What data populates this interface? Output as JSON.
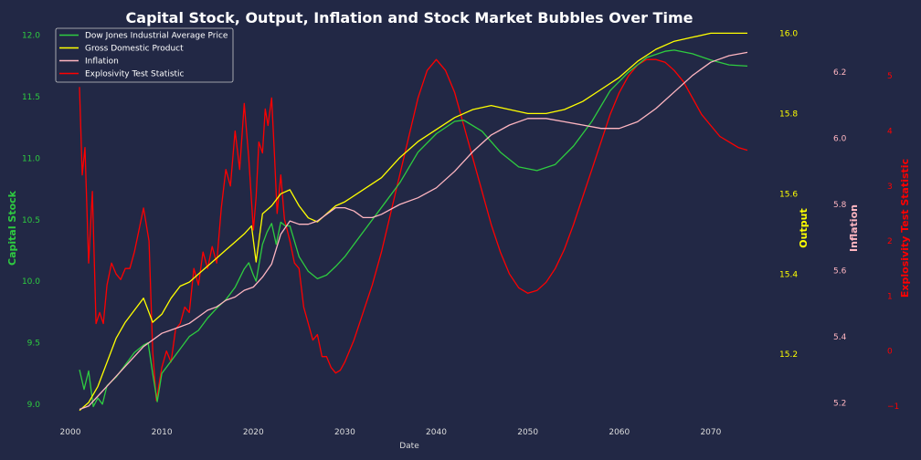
{
  "chart_data": {
    "type": "line",
    "title": "Capital Stock, Output, Inflation and Stock Market Bubbles Over Time",
    "xlabel": "Date",
    "xlim": [
      1998.5,
      2075.5
    ],
    "x_ticks": [
      "2000",
      "2010",
      "2020",
      "2030",
      "2040",
      "2050",
      "2060",
      "2070"
    ],
    "grid": false,
    "legend_position": "top-left",
    "axes": {
      "capital_stock": {
        "label": "Capital Stock",
        "color": "#2ecc40",
        "ylim": [
          8.85,
          12.05
        ],
        "ticks": [
          "9.0",
          "9.5",
          "10.0",
          "10.5",
          "11.0",
          "11.5",
          "12.0"
        ]
      },
      "output": {
        "label": "Output",
        "color": "#ffff00",
        "ylim": [
          15.03,
          16.01
        ],
        "ticks": [
          "15.2",
          "15.4",
          "15.6",
          "15.8",
          "16.0"
        ]
      },
      "inflation": {
        "label": "Inflation",
        "color": "#ffb6c1",
        "ylim": [
          5.14,
          6.33
        ],
        "ticks": [
          "5.2",
          "5.4",
          "5.6",
          "5.8",
          "6.0",
          "6.2"
        ]
      },
      "explosivity": {
        "label": "Explosivity Test Statistic",
        "color": "#ff0000",
        "ylim": [
          -1.3,
          5.85
        ],
        "ticks": [
          "−1",
          "0",
          "1",
          "2",
          "3",
          "4",
          "5"
        ]
      }
    },
    "series": [
      {
        "name": "Dow Jones Industrial Average Price",
        "axis": "capital_stock",
        "color": "#2ecc40",
        "x": [
          2001,
          2001.5,
          2002,
          2002.5,
          2003,
          2003.5,
          2004,
          2005,
          2006,
          2007,
          2008,
          2008.5,
          2009,
          2009.5,
          2010,
          2011,
          2012,
          2013,
          2014,
          2015,
          2016,
          2017,
          2018,
          2019,
          2019.5,
          2020,
          2020.3,
          2021,
          2021.5,
          2022,
          2022.5,
          2023,
          2023.5,
          2024,
          2025,
          2026,
          2027,
          2028,
          2029,
          2030,
          2032,
          2034,
          2036,
          2038,
          2040,
          2042,
          2043,
          2045,
          2047,
          2049,
          2051,
          2053,
          2055,
          2057,
          2059,
          2061,
          2063,
          2065,
          2066,
          2068,
          2070,
          2072,
          2074
        ],
        "values": [
          9.28,
          9.12,
          9.27,
          8.98,
          9.05,
          9.0,
          9.15,
          9.22,
          9.32,
          9.42,
          9.48,
          9.5,
          9.25,
          9.02,
          9.25,
          9.35,
          9.45,
          9.55,
          9.6,
          9.7,
          9.78,
          9.85,
          9.95,
          10.1,
          10.15,
          10.05,
          10.0,
          10.3,
          10.4,
          10.47,
          10.3,
          10.48,
          10.45,
          10.45,
          10.2,
          10.08,
          10.02,
          10.05,
          10.12,
          10.2,
          10.4,
          10.6,
          10.8,
          11.05,
          11.2,
          11.3,
          11.31,
          11.22,
          11.05,
          10.93,
          10.9,
          10.95,
          11.1,
          11.3,
          11.55,
          11.7,
          11.82,
          11.87,
          11.88,
          11.85,
          11.8,
          11.76,
          11.75
        ]
      },
      {
        "name": "Gross Domestic Product",
        "axis": "output",
        "color": "#ffff00",
        "x": [
          2001,
          2002,
          2003,
          2004,
          2005,
          2006,
          2007,
          2008,
          2009,
          2010,
          2011,
          2012,
          2013,
          2014,
          2015,
          2016,
          2017,
          2018,
          2019,
          2019.8,
          2020.3,
          2021,
          2022,
          2023,
          2024,
          2025,
          2026,
          2027,
          2028,
          2029,
          2030,
          2032,
          2034,
          2036,
          2038,
          2040,
          2042,
          2044,
          2046,
          2048,
          2050,
          2052,
          2054,
          2056,
          2058,
          2060,
          2062,
          2064,
          2066,
          2068,
          2070,
          2072,
          2074
        ],
        "values": [
          15.06,
          15.08,
          15.12,
          15.18,
          15.24,
          15.28,
          15.31,
          15.34,
          15.28,
          15.3,
          15.34,
          15.37,
          15.38,
          15.4,
          15.42,
          15.44,
          15.46,
          15.48,
          15.5,
          15.52,
          15.43,
          15.55,
          15.57,
          15.6,
          15.61,
          15.57,
          15.54,
          15.53,
          15.55,
          15.57,
          15.58,
          15.61,
          15.64,
          15.69,
          15.73,
          15.76,
          15.79,
          15.81,
          15.82,
          15.81,
          15.8,
          15.8,
          15.81,
          15.83,
          15.86,
          15.89,
          15.93,
          15.96,
          15.98,
          15.99,
          16.0,
          16.0,
          16.0
        ]
      },
      {
        "name": "Inflation",
        "axis": "inflation",
        "color": "#ffb6c1",
        "x": [
          2001,
          2002,
          2003,
          2004,
          2005,
          2006,
          2007,
          2008,
          2009,
          2010,
          2011,
          2012,
          2013,
          2014,
          2015,
          2016,
          2017,
          2018,
          2019,
          2020,
          2021,
          2022,
          2023,
          2024,
          2025,
          2026,
          2027,
          2028,
          2029,
          2030,
          2031,
          2032,
          2033,
          2034,
          2036,
          2038,
          2040,
          2042,
          2044,
          2046,
          2048,
          2050,
          2052,
          2054,
          2056,
          2058,
          2060,
          2062,
          2064,
          2066,
          2068,
          2070,
          2072,
          2074
        ],
        "values": [
          5.18,
          5.19,
          5.22,
          5.25,
          5.28,
          5.31,
          5.34,
          5.37,
          5.39,
          5.41,
          5.42,
          5.43,
          5.44,
          5.46,
          5.48,
          5.49,
          5.51,
          5.52,
          5.54,
          5.55,
          5.58,
          5.62,
          5.71,
          5.75,
          5.74,
          5.74,
          5.75,
          5.77,
          5.79,
          5.79,
          5.78,
          5.76,
          5.76,
          5.77,
          5.8,
          5.82,
          5.85,
          5.9,
          5.96,
          6.01,
          6.04,
          6.06,
          6.06,
          6.05,
          6.04,
          6.03,
          6.03,
          6.05,
          6.09,
          6.14,
          6.19,
          6.23,
          6.25,
          6.26
        ]
      },
      {
        "name": "Explosivity Test Statistic",
        "axis": "explosivity",
        "color": "#ff0000",
        "x": [
          2001,
          2001.3,
          2001.6,
          2002,
          2002.4,
          2002.8,
          2003.2,
          2003.6,
          2004,
          2004.5,
          2005,
          2005.5,
          2006,
          2006.5,
          2007,
          2007.5,
          2008,
          2008.3,
          2008.6,
          2009,
          2009.4,
          2009.6,
          2010,
          2010.5,
          2011,
          2011.5,
          2012,
          2012.5,
          2013,
          2013.5,
          2014,
          2014.5,
          2015,
          2015.5,
          2016,
          2016.5,
          2017,
          2017.5,
          2018,
          2018.5,
          2019,
          2019.5,
          2020,
          2020.3,
          2020.6,
          2021,
          2021.3,
          2021.6,
          2022,
          2022.3,
          2022.6,
          2023,
          2023.4,
          2024,
          2024.5,
          2025,
          2025.5,
          2026,
          2026.5,
          2027,
          2027.5,
          2028,
          2028.5,
          2029,
          2029.5,
          2030,
          2031,
          2032,
          2033,
          2034,
          2035,
          2036,
          2037,
          2038,
          2039,
          2040,
          2041,
          2042,
          2043,
          2044,
          2045,
          2046,
          2047,
          2048,
          2049,
          2050,
          2051,
          2052,
          2053,
          2054,
          2055,
          2056,
          2057,
          2058,
          2059,
          2060,
          2061,
          2062,
          2063,
          2064,
          2065,
          2066,
          2067,
          2068,
          2069,
          2070,
          2071,
          2072,
          2073,
          2074
        ],
        "values": [
          4.8,
          3.2,
          3.7,
          1.6,
          2.9,
          0.5,
          0.7,
          0.5,
          1.2,
          1.6,
          1.4,
          1.3,
          1.5,
          1.5,
          1.8,
          2.2,
          2.6,
          2.3,
          2.0,
          0.0,
          -0.9,
          -0.7,
          -0.3,
          0.0,
          -0.2,
          0.4,
          0.5,
          0.8,
          0.7,
          1.5,
          1.2,
          1.8,
          1.5,
          1.9,
          1.6,
          2.6,
          3.3,
          3.0,
          4.0,
          3.3,
          4.5,
          3.5,
          2.2,
          2.8,
          3.8,
          3.6,
          4.4,
          4.1,
          4.6,
          3.6,
          2.5,
          3.2,
          2.4,
          2.0,
          1.6,
          1.5,
          0.8,
          0.5,
          0.2,
          0.3,
          -0.1,
          -0.1,
          -0.3,
          -0.4,
          -0.35,
          -0.2,
          0.2,
          0.7,
          1.2,
          1.8,
          2.5,
          3.2,
          3.9,
          4.6,
          5.1,
          5.3,
          5.1,
          4.7,
          4.1,
          3.5,
          2.9,
          2.3,
          1.8,
          1.4,
          1.15,
          1.05,
          1.1,
          1.25,
          1.5,
          1.85,
          2.3,
          2.8,
          3.3,
          3.8,
          4.3,
          4.7,
          5.0,
          5.2,
          5.3,
          5.3,
          5.25,
          5.1,
          4.9,
          4.6,
          4.3,
          4.1,
          3.9,
          3.8,
          3.7,
          3.65
        ]
      }
    ]
  }
}
